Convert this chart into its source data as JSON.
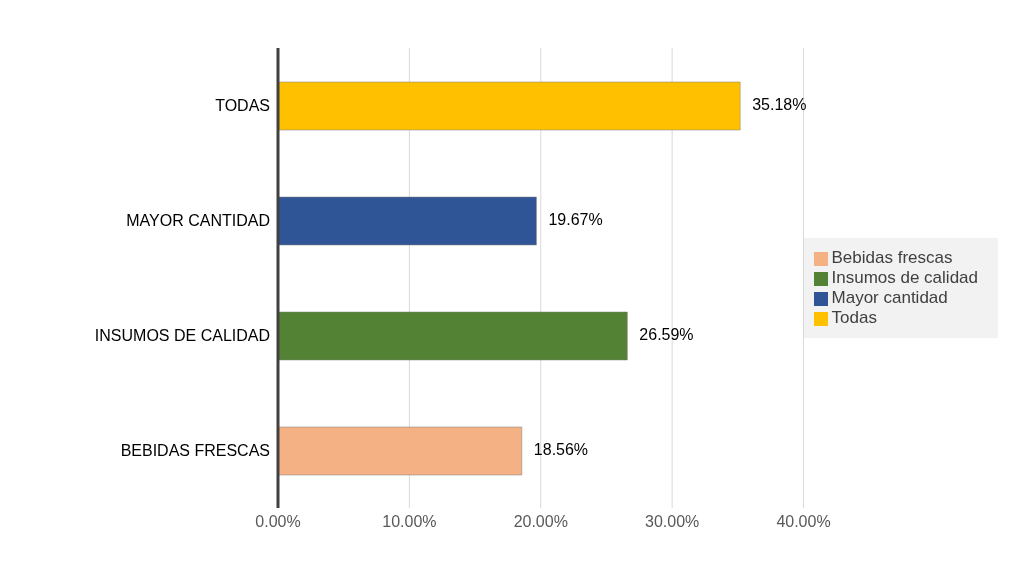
{
  "chart_data": {
    "type": "bar",
    "orientation": "horizontal",
    "stacked": true,
    "categories": [
      "TODAS",
      "MAYOR CANTIDAD",
      "INSUMOS DE CALIDAD",
      "BEBIDAS FRESCAS"
    ],
    "series": [
      {
        "name": "Bebidas frescas",
        "color": "#f4b183",
        "values": [
          null,
          null,
          null,
          18.56
        ],
        "value_labels": [
          null,
          null,
          null,
          "18.56%"
        ]
      },
      {
        "name": "Insumos de calidad",
        "color": "#548235",
        "values": [
          null,
          null,
          26.59,
          null
        ],
        "value_labels": [
          null,
          null,
          "26.59%",
          null
        ]
      },
      {
        "name": "Mayor cantidad",
        "color": "#2f5597",
        "values": [
          null,
          19.67,
          null,
          null
        ],
        "value_labels": [
          null,
          "19.67%",
          null,
          null
        ]
      },
      {
        "name": "Todas",
        "color": "#ffc000",
        "values": [
          35.18,
          null,
          null,
          null
        ],
        "value_labels": [
          "35.18%",
          null,
          null,
          null
        ]
      }
    ],
    "xlim": [
      0,
      40
    ],
    "xticks": [
      {
        "value": 0,
        "label": "0.00%"
      },
      {
        "value": 10,
        "label": "10.00%"
      },
      {
        "value": 20,
        "label": "20.00%"
      },
      {
        "value": 30,
        "label": "30.00%"
      },
      {
        "value": 40,
        "label": "40.00%"
      }
    ],
    "grid": "x",
    "legend": "right"
  }
}
